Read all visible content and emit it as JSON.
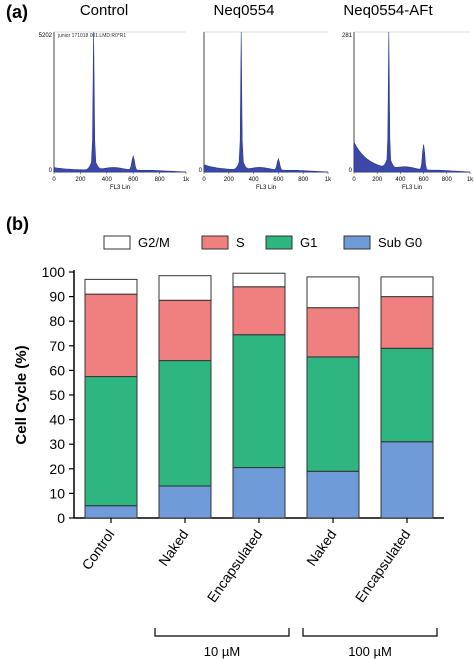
{
  "panel_a": {
    "label": "(a)",
    "histograms": [
      {
        "title": "Control",
        "header": "junior 171018 001.LMD:R0*R1",
        "ymax_label": "5202",
        "ymin_label": "0",
        "xticks": [
          "0",
          "200",
          "400",
          "600",
          "800",
          "1k"
        ],
        "xlabel": "FL3 Lin",
        "g1_peak": 1.0,
        "g2_peak": 0.1,
        "subg0_level": 0.02
      },
      {
        "title": "Neq0554",
        "header": "",
        "ymax_label": "",
        "ymin_label": "0",
        "xticks": [
          "0",
          "200",
          "400",
          "600",
          "800",
          "1k"
        ],
        "xlabel": "FL3 Lin",
        "g1_peak": 1.0,
        "g2_peak": 0.08,
        "subg0_level": 0.04
      },
      {
        "title": "Neq0554-AFt",
        "header": "",
        "ymax_label": "281",
        "ymin_label": "0",
        "xticks": [
          "0",
          "200",
          "400",
          "600",
          "800",
          "1k"
        ],
        "xlabel": "FL3 Lin",
        "g1_peak": 1.0,
        "g2_peak": 0.18,
        "subg0_level": 0.2
      }
    ]
  },
  "panel_b": {
    "label": "(b)",
    "group_labels": [
      "10 µM",
      "100 µM"
    ]
  },
  "chart_data": {
    "type": "bar",
    "stacked": true,
    "categories": [
      "Control",
      "Naked",
      "Encapsulated",
      "Naked",
      "Encapsulated"
    ],
    "series": [
      {
        "name": "Sub G0",
        "color": "#6F9BD8",
        "values": [
          5,
          13,
          20.5,
          19,
          31
        ]
      },
      {
        "name": "G1",
        "color": "#2FB57F",
        "values": [
          52.5,
          51,
          54,
          46.5,
          38
        ]
      },
      {
        "name": "S",
        "color": "#F08080",
        "values": [
          33.5,
          24.5,
          19.5,
          20,
          21
        ]
      },
      {
        "name": "G2/M",
        "color": "#FFFFFF",
        "values": [
          6,
          10,
          5.5,
          12.5,
          8
        ]
      }
    ],
    "legend_order": [
      "G2/M",
      "S",
      "G1",
      "Sub G0"
    ],
    "ylabel": "Cell Cycle (%)",
    "ylim": [
      0,
      100
    ],
    "yticks": [
      0,
      10,
      20,
      30,
      40,
      50,
      60,
      70,
      80,
      90,
      100
    ],
    "legend": "top"
  }
}
